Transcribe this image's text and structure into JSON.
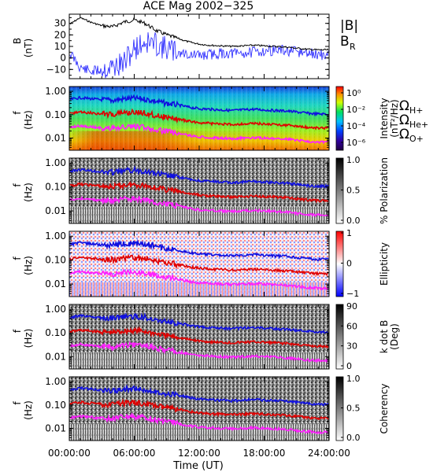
{
  "title": "ACE Mag 2002−325",
  "x_axis": {
    "label": "Time (UT)",
    "ticks": [
      "00:00:00",
      "06:00:00",
      "12:00:00",
      "18:00:00",
      "24:00:00"
    ],
    "range_hours": [
      0,
      24
    ]
  },
  "colors": {
    "B": "#000000",
    "BR": "#2020ff",
    "H": "#1010e0",
    "He": "#e00000",
    "O": "#ff20ff"
  },
  "legend_top": {
    "absB": "|B|",
    "BR_main": "B",
    "BR_sub": "R"
  },
  "legend_spec": {
    "H_main": "Ω",
    "H_sub": "H+",
    "He_main": "Ω",
    "He_sub": "He+",
    "O_main": "Ω",
    "O_sub": "O+"
  },
  "panels": [
    {
      "id": "b",
      "ylabel": "B",
      "yunit": "(nT)",
      "yticks": [
        "30",
        "20",
        "10",
        "0",
        "−10"
      ],
      "ylim": [
        -18,
        38
      ]
    },
    {
      "id": "intensity",
      "ylabel": "f",
      "yunit": "(Hz)",
      "yticks": [
        "1.00",
        "0.10",
        "0.01"
      ],
      "ylim": [
        0.003,
        1.6
      ],
      "scale": "log",
      "colorbar": {
        "label": "Intensity",
        "unit": "(nT²/Hz)",
        "colormap": "rainbow",
        "ticks": [
          "10⁰",
          "10⁻²",
          "10⁻⁴",
          "10⁻⁶"
        ]
      }
    },
    {
      "id": "polarization",
      "ylabel": "f",
      "yunit": "(Hz)",
      "yticks": [
        "1.00",
        "0.10",
        "0.01"
      ],
      "ylim": [
        0.003,
        1.6
      ],
      "scale": "log",
      "colorbar": {
        "label": "% Polarization",
        "colormap": "gray",
        "ticks": [
          "1.0",
          "0.5",
          "0.0"
        ]
      }
    },
    {
      "id": "ellipticity",
      "ylabel": "f",
      "yunit": "(Hz)",
      "yticks": [
        "1.00",
        "0.10",
        "0.01"
      ],
      "ylim": [
        0.003,
        1.6
      ],
      "scale": "log",
      "colorbar": {
        "label": "Ellipticity",
        "colormap": "bwr",
        "ticks": [
          "1",
          "0",
          "−1"
        ]
      }
    },
    {
      "id": "kdotb",
      "ylabel": "f",
      "yunit": "(Hz)",
      "yticks": [
        "1.00",
        "0.10",
        "0.01"
      ],
      "ylim": [
        0.003,
        1.6
      ],
      "scale": "log",
      "colorbar": {
        "label": "k dot B",
        "unit": "(Deg)",
        "colormap": "gray",
        "ticks": [
          "90",
          "60",
          "30",
          "0"
        ]
      }
    },
    {
      "id": "coherency",
      "ylabel": "f",
      "yunit": "(Hz)",
      "yticks": [
        "1.00",
        "0.10",
        "0.01"
      ],
      "ylim": [
        0.003,
        1.6
      ],
      "scale": "log",
      "colorbar": {
        "label": "Coherency",
        "colormap": "gray",
        "ticks": [
          "1.0",
          "0.5",
          "0.0"
        ]
      }
    }
  ],
  "chart_data": {
    "type": "line",
    "title": "ACE Mag 2002−325",
    "xlabel": "Time (UT)",
    "x_hours": [
      0,
      1,
      2,
      3,
      4,
      5,
      6,
      7,
      8,
      9,
      10,
      11,
      12,
      13,
      14,
      15,
      16,
      17,
      18,
      19,
      20,
      21,
      22,
      23,
      24
    ],
    "B_panel": {
      "ylabel": "B (nT)",
      "ylim": [
        -18,
        38
      ],
      "series": [
        {
          "name": "|B|",
          "values": [
            29,
            35,
            31,
            28,
            27,
            31,
            33,
            30,
            24,
            20,
            17,
            14,
            12,
            11,
            10.5,
            10,
            10.5,
            11,
            10.5,
            10,
            9.5,
            8.5,
            7.5,
            7,
            7
          ]
        },
        {
          "name": "B_R",
          "values": [
            5,
            -8,
            -12,
            -10,
            -8,
            -5,
            8,
            14,
            12,
            8,
            5,
            3,
            2,
            3,
            4,
            4,
            4,
            5,
            6,
            7,
            6,
            5,
            4,
            3,
            2
          ]
        }
      ]
    },
    "gyrofrequency_Hz": [
      {
        "name": "ΩH+",
        "values": [
          0.44,
          0.53,
          0.48,
          0.43,
          0.41,
          0.47,
          0.5,
          0.46,
          0.37,
          0.3,
          0.26,
          0.21,
          0.18,
          0.17,
          0.16,
          0.15,
          0.16,
          0.17,
          0.16,
          0.15,
          0.145,
          0.13,
          0.115,
          0.107,
          0.107
        ]
      },
      {
        "name": "ΩHe+",
        "values": [
          0.11,
          0.13,
          0.12,
          0.107,
          0.103,
          0.118,
          0.126,
          0.115,
          0.092,
          0.076,
          0.065,
          0.053,
          0.046,
          0.042,
          0.04,
          0.038,
          0.04,
          0.042,
          0.04,
          0.038,
          0.036,
          0.032,
          0.029,
          0.027,
          0.027
        ]
      },
      {
        "name": "ΩO+",
        "values": [
          0.028,
          0.033,
          0.03,
          0.027,
          0.026,
          0.03,
          0.031,
          0.029,
          0.023,
          0.019,
          0.016,
          0.013,
          0.011,
          0.0105,
          0.01,
          0.0095,
          0.01,
          0.0105,
          0.01,
          0.0095,
          0.009,
          0.008,
          0.0072,
          0.0067,
          0.0067
        ]
      }
    ]
  }
}
